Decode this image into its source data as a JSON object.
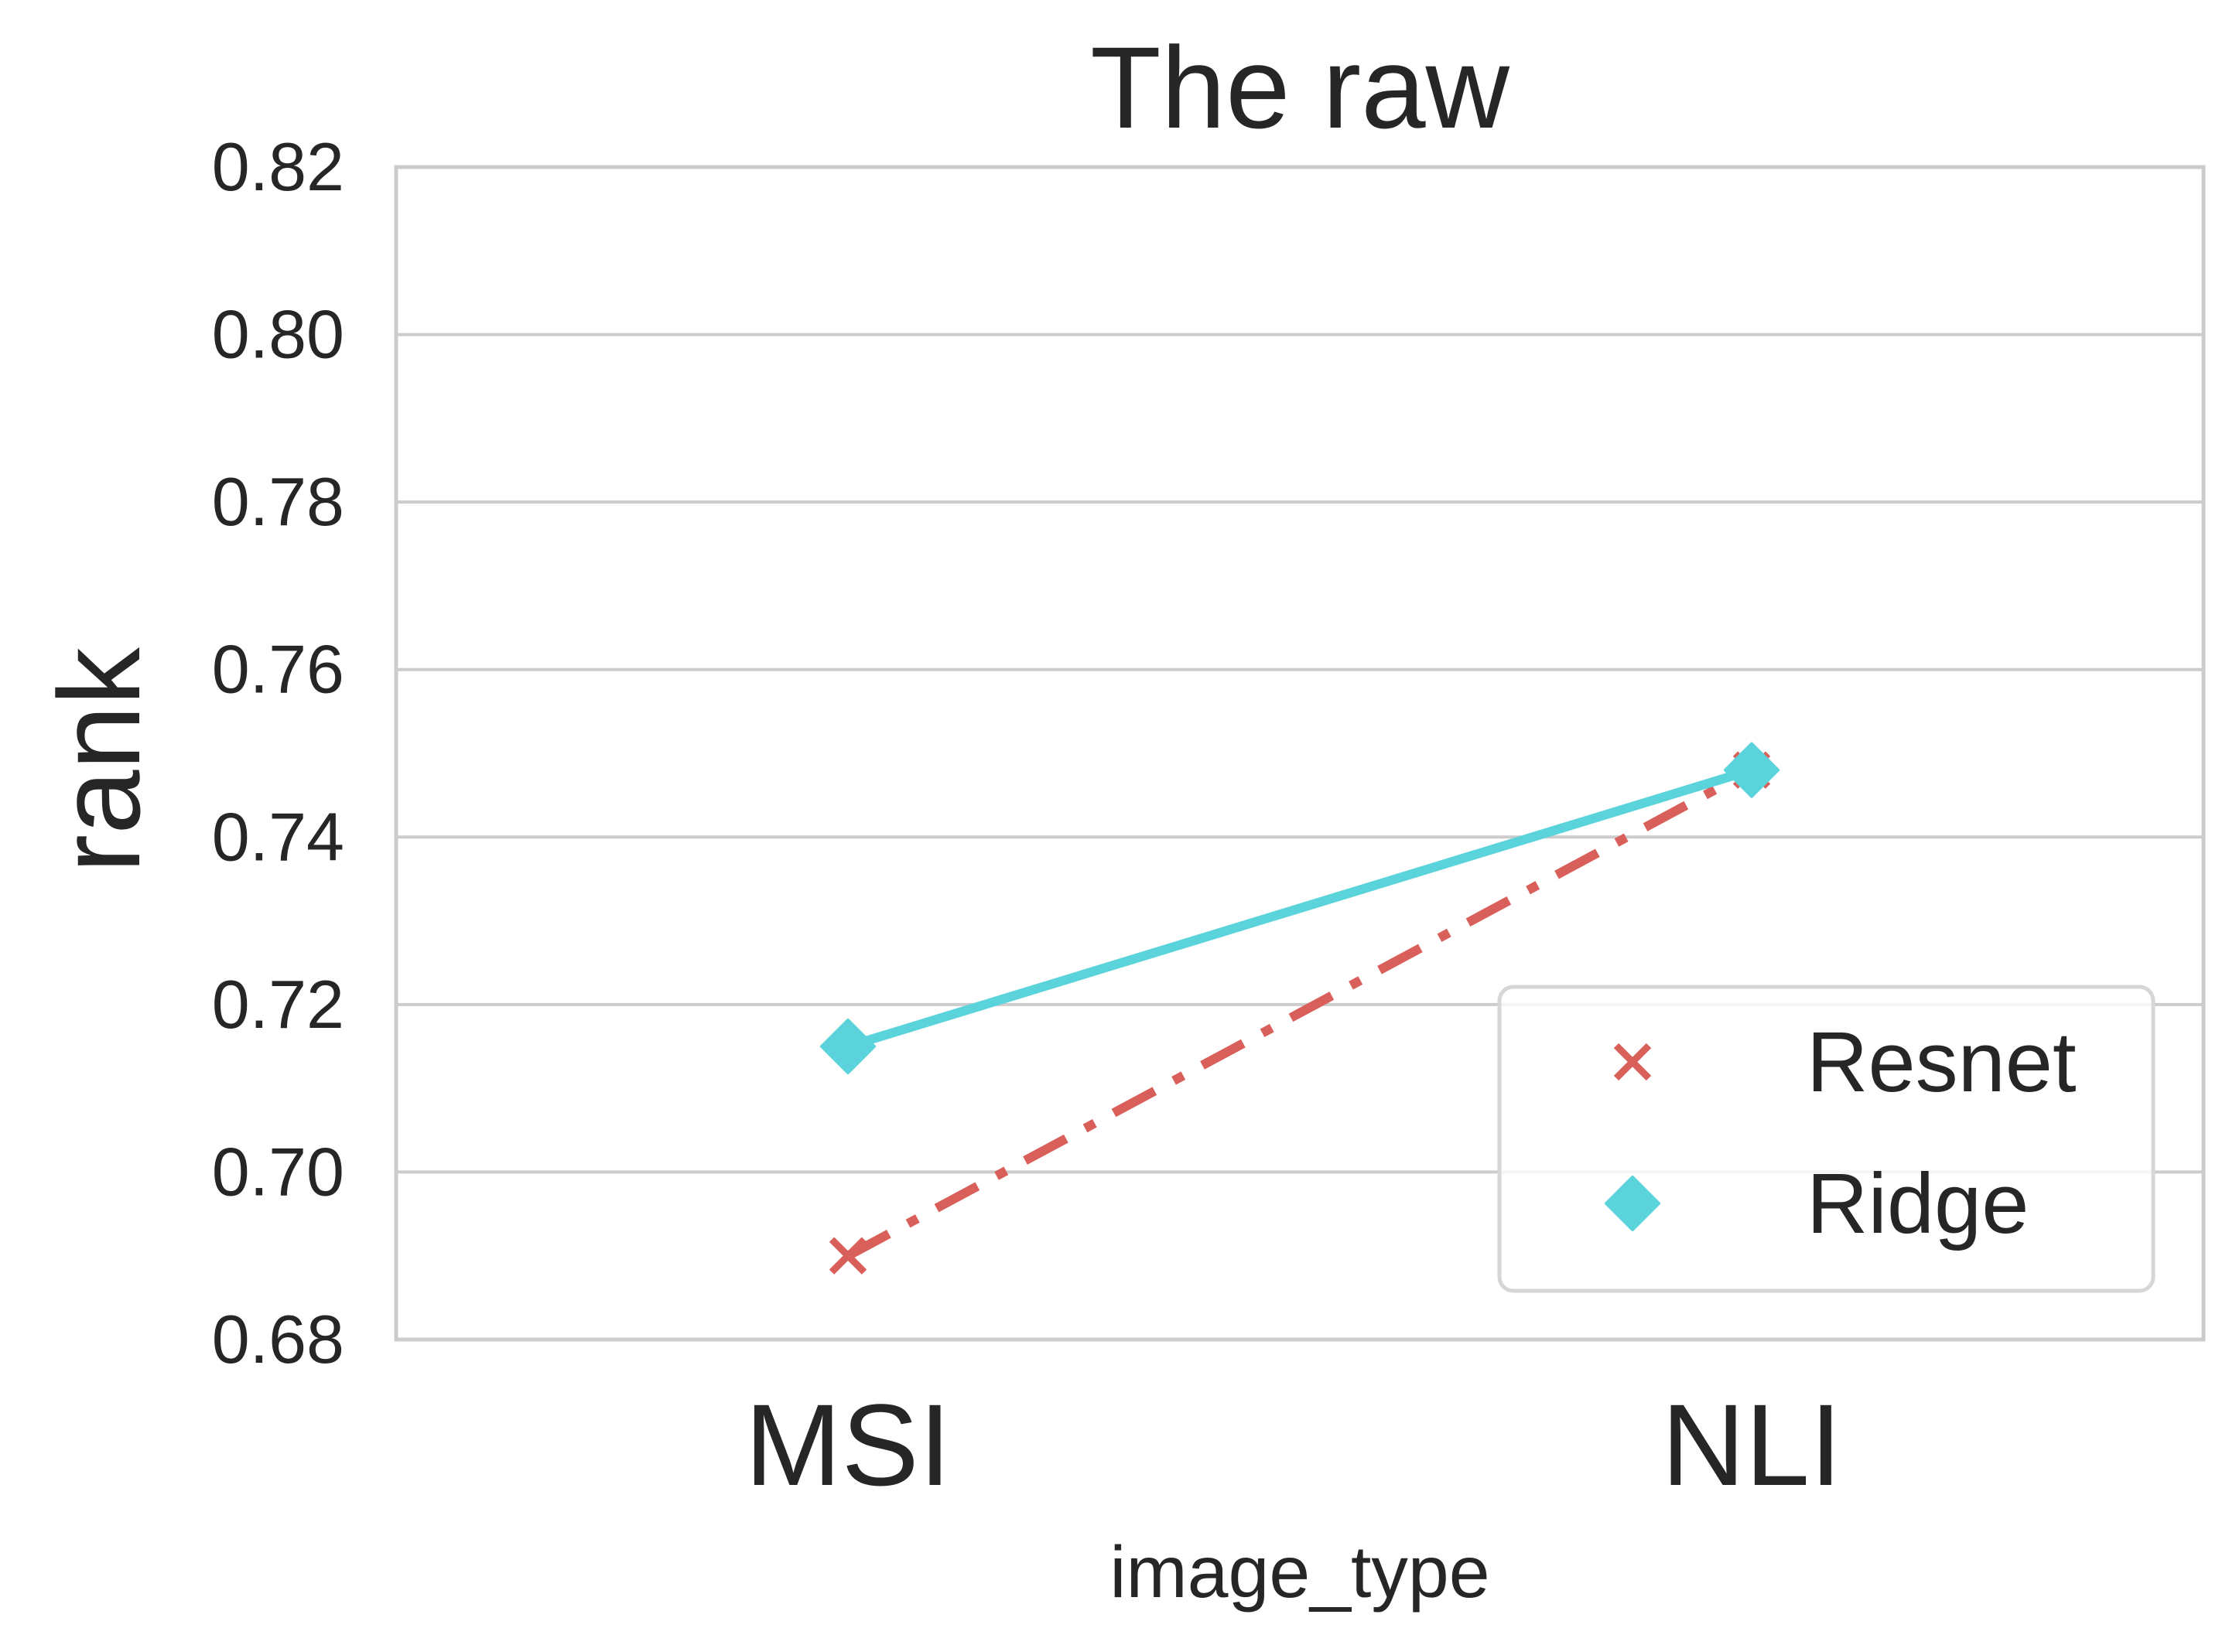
{
  "chart_data": {
    "type": "line",
    "title": "The raw",
    "xlabel": "image_type",
    "ylabel": "rank",
    "categories": [
      "MSI",
      "NLI"
    ],
    "ylim": [
      0.68,
      0.82
    ],
    "yticks": [
      "0.68",
      "0.70",
      "0.72",
      "0.74",
      "0.76",
      "0.78",
      "0.80",
      "0.82"
    ],
    "grid": "horizontal",
    "legend_position": "lower right",
    "series": [
      {
        "name": "Resnet",
        "values": [
          0.69,
          0.748
        ],
        "color": "#d9605a",
        "marker": "x",
        "line_style": "dash-dot"
      },
      {
        "name": "Ridge",
        "values": [
          0.715,
          0.748
        ],
        "color": "#5bd3db",
        "marker": "diamond",
        "line_style": "solid"
      }
    ]
  }
}
